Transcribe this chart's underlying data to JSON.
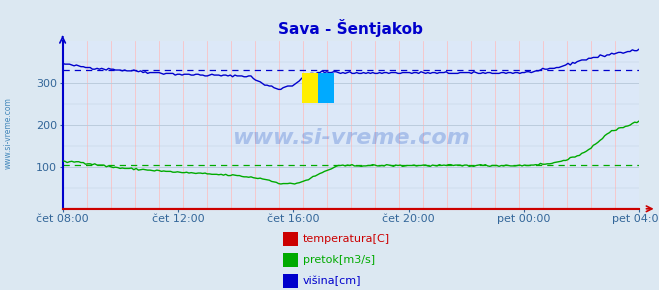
{
  "title": "Sava - Šentjakob",
  "bg_color": "#dce8f2",
  "plot_bg_color": "#dce8f8",
  "ylim": [
    0,
    400
  ],
  "yticks": [
    100,
    200,
    300
  ],
  "xtick_labels": [
    "čet 08:00",
    "čet 12:00",
    "čet 16:00",
    "čet 20:00",
    "pet 00:00",
    "pet 04:00"
  ],
  "xtick_positions": [
    0,
    4,
    8,
    12,
    16,
    20
  ],
  "total_points": 252,
  "avg_visina": 330,
  "avg_pretok": 105,
  "title_color": "#0000cc",
  "watermark": "www.si-vreme.com",
  "watermark_color": "#3366cc",
  "watermark_alpha": 0.3,
  "legend_items": [
    {
      "label": "temperatura[C]",
      "color": "#cc0000"
    },
    {
      "label": "pretok[m3/s]",
      "color": "#00aa00"
    },
    {
      "label": "višina[cm]",
      "color": "#0000cc"
    }
  ],
  "sidebar_text": "www.si-vreme.com",
  "sidebar_color": "#4488bb",
  "spine_left_color": "#0000cc",
  "spine_bottom_color": "#cc0000"
}
